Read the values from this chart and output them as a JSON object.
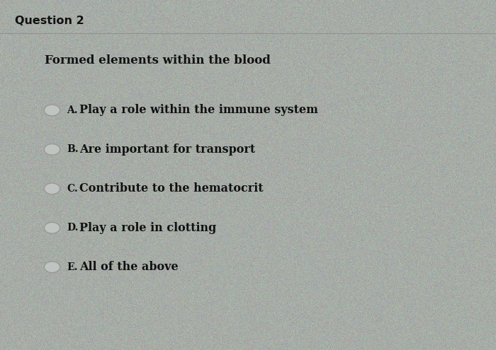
{
  "title": "Question 2",
  "question": "Formed elements within the blood",
  "options": [
    {
      "label": "A.",
      "text": "Play a role within the immune system"
    },
    {
      "label": "B.",
      "text": "Are important for transport"
    },
    {
      "label": "C.",
      "text": "Contribute to the hematocrit"
    },
    {
      "label": "D.",
      "text": "Play a role in clotting"
    },
    {
      "label": "E.",
      "text": "All of the above"
    }
  ],
  "bg_color_light": "#c8ccc8",
  "bg_color_dark": "#a8acaa",
  "title_fontsize": 11.5,
  "question_fontsize": 12,
  "option_fontsize": 11.5,
  "label_fontsize": 10,
  "text_color": "#111111",
  "circle_edge_color": "#999999",
  "circle_face_color": "#c0c4c0",
  "noise_alpha": 0.06,
  "title_line_color": "#aaaaaa"
}
